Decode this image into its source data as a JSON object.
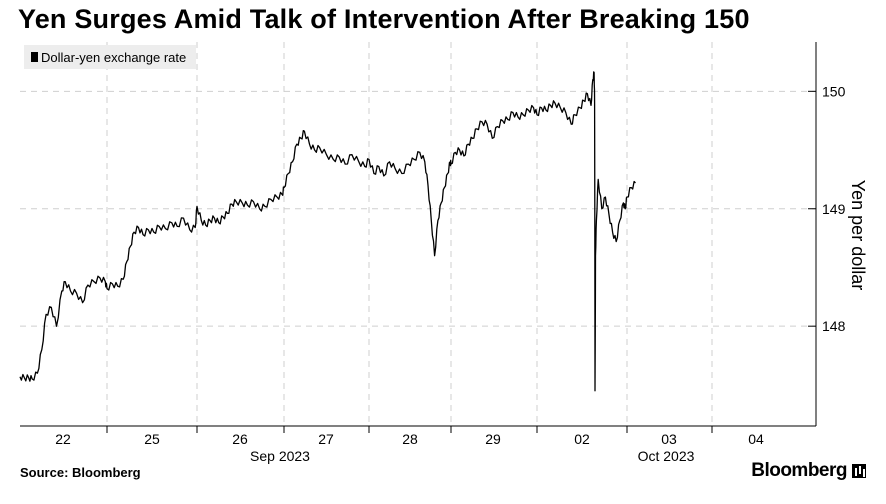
{
  "title": "Yen Surges Amid Talk of Intervention After Breaking 150",
  "source": "Source: Bloomberg",
  "brand": "Bloomberg",
  "chart_data": {
    "type": "line",
    "ylabel": "Yen per dollar",
    "ylim": [
      147.15,
      150.42
    ],
    "yticks": [
      148,
      149,
      150
    ],
    "grid": true,
    "legend": "top-left",
    "day_labels": [
      "22",
      "25",
      "26",
      "27",
      "28",
      "29",
      "02",
      "03",
      "04"
    ],
    "month_labels": [
      "Sep 2023",
      "Oct 2023"
    ],
    "series": [
      {
        "name": "Dollar-yen exchange rate",
        "color": "#000000",
        "points": [
          [
            0.0,
            147.57
          ],
          [
            0.05,
            147.56
          ],
          [
            0.1,
            147.56
          ],
          [
            0.14,
            147.55
          ],
          [
            0.2,
            147.6
          ],
          [
            0.25,
            147.8
          ],
          [
            0.3,
            148.1
          ],
          [
            0.36,
            148.16
          ],
          [
            0.42,
            148.0
          ],
          [
            0.48,
            148.3
          ],
          [
            0.52,
            148.38
          ],
          [
            0.58,
            148.3
          ],
          [
            0.65,
            148.28
          ],
          [
            0.72,
            148.2
          ],
          [
            0.78,
            148.35
          ],
          [
            0.85,
            148.38
          ],
          [
            0.92,
            148.41
          ],
          [
            0.98,
            148.38
          ],
          [
            1.0,
            148.32
          ],
          [
            1.06,
            148.36
          ],
          [
            1.12,
            148.34
          ],
          [
            1.18,
            148.4
          ],
          [
            1.22,
            148.55
          ],
          [
            1.26,
            148.68
          ],
          [
            1.3,
            148.8
          ],
          [
            1.35,
            148.84
          ],
          [
            1.4,
            148.78
          ],
          [
            1.46,
            148.82
          ],
          [
            1.52,
            148.8
          ],
          [
            1.58,
            148.85
          ],
          [
            1.65,
            148.83
          ],
          [
            1.72,
            148.88
          ],
          [
            1.78,
            148.85
          ],
          [
            1.85,
            148.92
          ],
          [
            1.92,
            148.82
          ],
          [
            1.98,
            148.84
          ],
          [
            2.0,
            149.02
          ],
          [
            2.05,
            148.9
          ],
          [
            2.1,
            148.86
          ],
          [
            2.15,
            148.9
          ],
          [
            2.2,
            148.92
          ],
          [
            2.25,
            148.88
          ],
          [
            2.3,
            148.93
          ],
          [
            2.35,
            148.96
          ],
          [
            2.4,
            149.04
          ],
          [
            2.45,
            149.06
          ],
          [
            2.52,
            149.05
          ],
          [
            2.58,
            149.03
          ],
          [
            2.65,
            149.06
          ],
          [
            2.72,
            149.0
          ],
          [
            2.78,
            149.02
          ],
          [
            2.85,
            149.08
          ],
          [
            2.92,
            149.1
          ],
          [
            2.98,
            149.12
          ],
          [
            3.0,
            149.18
          ],
          [
            3.05,
            149.3
          ],
          [
            3.1,
            149.4
          ],
          [
            3.15,
            149.55
          ],
          [
            3.2,
            149.6
          ],
          [
            3.24,
            149.66
          ],
          [
            3.3,
            149.55
          ],
          [
            3.36,
            149.5
          ],
          [
            3.42,
            149.52
          ],
          [
            3.5,
            149.46
          ],
          [
            3.58,
            149.42
          ],
          [
            3.65,
            149.44
          ],
          [
            3.72,
            149.38
          ],
          [
            3.8,
            149.46
          ],
          [
            3.88,
            149.4
          ],
          [
            3.95,
            149.36
          ],
          [
            4.0,
            149.42
          ],
          [
            4.06,
            149.3
          ],
          [
            4.12,
            149.36
          ],
          [
            4.18,
            149.28
          ],
          [
            4.25,
            149.4
          ],
          [
            4.32,
            149.34
          ],
          [
            4.4,
            149.3
          ],
          [
            4.48,
            149.38
          ],
          [
            4.55,
            149.42
          ],
          [
            4.62,
            149.48
          ],
          [
            4.68,
            149.4
          ],
          [
            4.72,
            149.2
          ],
          [
            4.76,
            148.9
          ],
          [
            4.8,
            148.6
          ],
          [
            4.84,
            148.9
          ],
          [
            4.88,
            149.05
          ],
          [
            4.92,
            149.18
          ],
          [
            4.96,
            149.3
          ],
          [
            4.99,
            149.4
          ],
          [
            5.0,
            149.38
          ],
          [
            5.05,
            149.48
          ],
          [
            5.1,
            149.5
          ],
          [
            5.15,
            149.45
          ],
          [
            5.2,
            149.55
          ],
          [
            5.25,
            149.6
          ],
          [
            5.3,
            149.68
          ],
          [
            5.36,
            149.74
          ],
          [
            5.42,
            149.72
          ],
          [
            5.48,
            149.6
          ],
          [
            5.54,
            149.7
          ],
          [
            5.6,
            149.75
          ],
          [
            5.66,
            149.76
          ],
          [
            5.72,
            149.82
          ],
          [
            5.78,
            149.78
          ],
          [
            5.84,
            149.8
          ],
          [
            5.9,
            149.84
          ],
          [
            5.96,
            149.86
          ],
          [
            6.0,
            149.8
          ],
          [
            6.05,
            149.86
          ],
          [
            6.1,
            149.84
          ],
          [
            6.15,
            149.88
          ],
          [
            6.2,
            149.9
          ],
          [
            6.26,
            149.86
          ],
          [
            6.32,
            149.82
          ],
          [
            6.38,
            149.72
          ],
          [
            6.42,
            149.8
          ],
          [
            6.48,
            149.86
          ],
          [
            6.52,
            149.92
          ],
          [
            6.56,
            149.98
          ],
          [
            6.6,
            149.88
          ],
          [
            6.62,
            150.1
          ],
          [
            6.635,
            150.16
          ],
          [
            6.64,
            149.9
          ],
          [
            6.645,
            147.45
          ],
          [
            6.65,
            148.6
          ],
          [
            6.66,
            148.9
          ],
          [
            6.68,
            149.25
          ],
          [
            6.72,
            149.0
          ],
          [
            6.76,
            149.1
          ],
          [
            6.8,
            148.95
          ],
          [
            6.84,
            148.8
          ],
          [
            6.88,
            148.72
          ],
          [
            6.92,
            148.9
          ],
          [
            6.96,
            149.05
          ],
          [
            6.98,
            149.0
          ],
          [
            7.0,
            149.1
          ],
          [
            7.05,
            149.18
          ],
          [
            7.1,
            149.22
          ]
        ]
      }
    ]
  }
}
